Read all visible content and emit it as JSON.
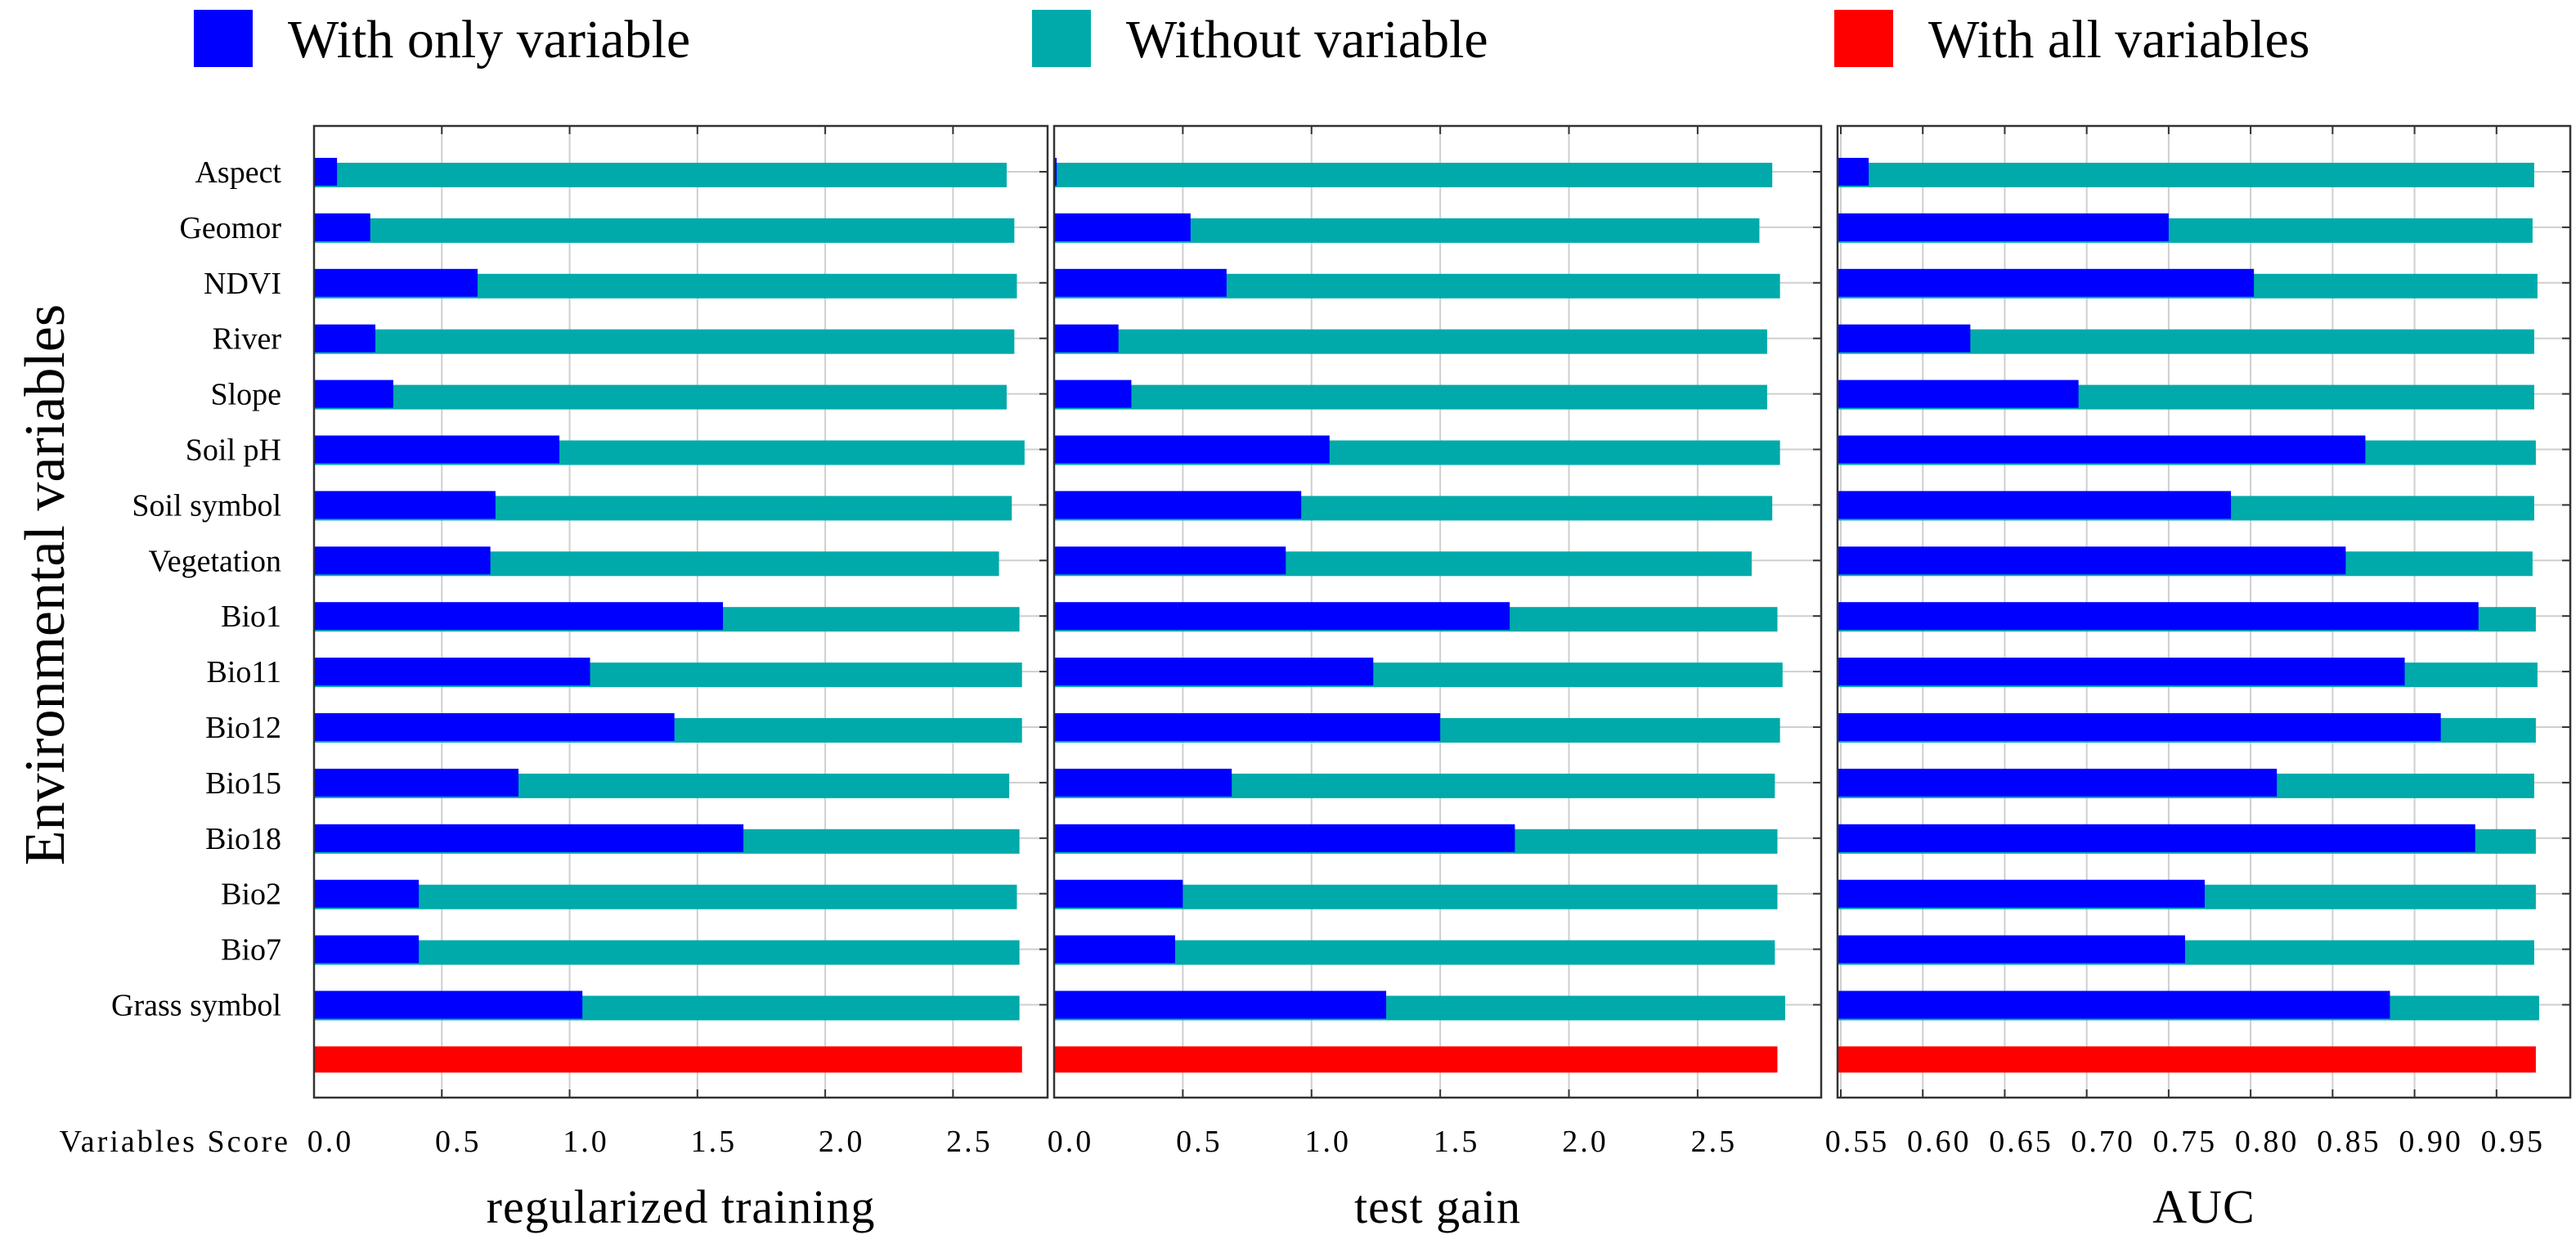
{
  "chart_data": {
    "type": "bar",
    "orientation": "horizontal",
    "legend": [
      {
        "label": "With only variable",
        "color": "#0000ff"
      },
      {
        "label": "Without variable",
        "color": "#00aaaa"
      },
      {
        "label": "With all variables",
        "color": "#ff0000"
      }
    ],
    "legend_placement": "top",
    "ylabel": "Environmental variables",
    "xaxis_row_label": "Variables Score",
    "categories": [
      "Aspect",
      "Geomor",
      "NDVI",
      "River",
      "Slope",
      "Soil pH",
      "Soil symbol",
      "Vegetation",
      "Bio1",
      "Bio11",
      "Bio12",
      "Bio15",
      "Bio18",
      "Bio2",
      "Bio7",
      "Grass symbol"
    ],
    "grid": true,
    "panels": [
      {
        "title": "regularized training",
        "xlim": [
          0.0,
          2.87
        ],
        "ticks": [
          0.0,
          0.5,
          1.0,
          1.5,
          2.0,
          2.5
        ],
        "tick_labels": [
          "0.0",
          "0.5",
          "1.0",
          "1.5",
          "2.0",
          "2.5"
        ],
        "series": [
          {
            "name": "With only variable",
            "values": [
              0.09,
              0.22,
              0.64,
              0.24,
              0.31,
              0.96,
              0.71,
              0.69,
              1.6,
              1.08,
              1.41,
              0.8,
              1.68,
              0.41,
              0.41,
              1.05
            ]
          },
          {
            "name": "Without variable",
            "values": [
              2.71,
              2.74,
              2.75,
              2.74,
              2.71,
              2.78,
              2.73,
              2.68,
              2.76,
              2.77,
              2.77,
              2.72,
              2.76,
              2.75,
              2.76,
              2.76
            ]
          },
          {
            "name": "With all variables",
            "values": [
              2.77
            ]
          }
        ]
      },
      {
        "title": "test gain",
        "xlim": [
          0.0,
          2.98
        ],
        "ticks": [
          0.0,
          0.5,
          1.0,
          1.5,
          2.0,
          2.5
        ],
        "tick_labels": [
          "0.0",
          "0.5",
          "1.0",
          "1.5",
          "2.0",
          "2.5"
        ],
        "series": [
          {
            "name": "With only variable",
            "values": [
              0.01,
              0.53,
              0.67,
              0.25,
              0.3,
              1.07,
              0.96,
              0.9,
              1.77,
              1.24,
              1.5,
              0.69,
              1.79,
              0.5,
              0.47,
              1.29
            ]
          },
          {
            "name": "Without variable",
            "values": [
              2.79,
              2.74,
              2.82,
              2.77,
              2.77,
              2.82,
              2.79,
              2.71,
              2.81,
              2.83,
              2.82,
              2.8,
              2.81,
              2.81,
              2.8,
              2.84
            ]
          },
          {
            "name": "With all variables",
            "values": [
              2.81
            ]
          }
        ]
      },
      {
        "title": "AUC",
        "xlim": [
          0.548,
          0.995
        ],
        "ticks": [
          0.55,
          0.6,
          0.65,
          0.7,
          0.75,
          0.8,
          0.85,
          0.9,
          0.95
        ],
        "tick_labels": [
          "0.55",
          "0.60",
          "0.65",
          "0.70",
          "0.75",
          "0.80",
          "0.85",
          "0.90",
          "0.95"
        ],
        "series": [
          {
            "name": "With only variable",
            "values": [
              0.567,
              0.75,
              0.802,
              0.629,
              0.695,
              0.87,
              0.788,
              0.858,
              0.939,
              0.894,
              0.916,
              0.816,
              0.937,
              0.772,
              0.76,
              0.885
            ]
          },
          {
            "name": "Without variable",
            "values": [
              0.973,
              0.972,
              0.975,
              0.973,
              0.973,
              0.974,
              0.973,
              0.972,
              0.974,
              0.975,
              0.974,
              0.973,
              0.974,
              0.974,
              0.973,
              0.976
            ]
          },
          {
            "name": "With all variables",
            "values": [
              0.974
            ]
          }
        ]
      }
    ]
  }
}
